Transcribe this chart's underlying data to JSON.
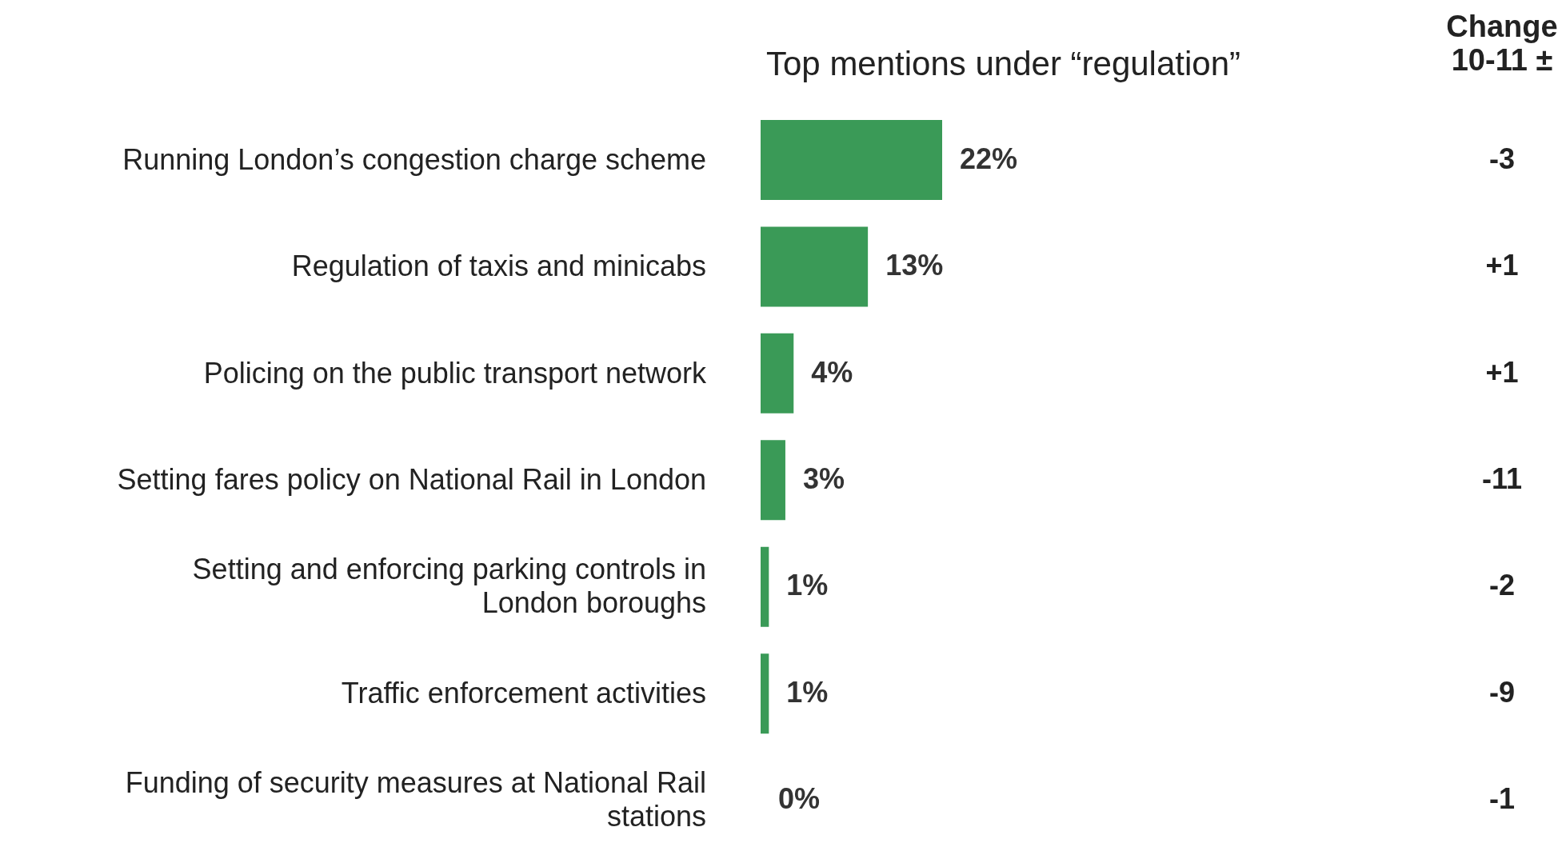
{
  "chart_data": {
    "type": "bar",
    "orientation": "horizontal",
    "title": "Top mentions under “regulation”",
    "categories": [
      "Running London’s congestion charge scheme",
      "Regulation of taxis and minicabs",
      "Policing on the public transport network",
      "Setting fares policy on National Rail in London",
      "Setting and enforcing parking controls in London boroughs",
      "Traffic enforcement activities",
      "Funding of security measures at National Rail stations"
    ],
    "values": [
      22,
      13,
      4,
      3,
      1,
      1,
      0
    ],
    "value_labels": [
      "22%",
      "13%",
      "4%",
      "3%",
      "1%",
      "1%",
      "0%"
    ],
    "color": "#3a9a57",
    "annotations": [
      "Change 10-11 ±",
      "-3",
      "+1",
      "+1",
      "-11",
      "-2",
      "-9",
      "-1"
    ]
  }
}
